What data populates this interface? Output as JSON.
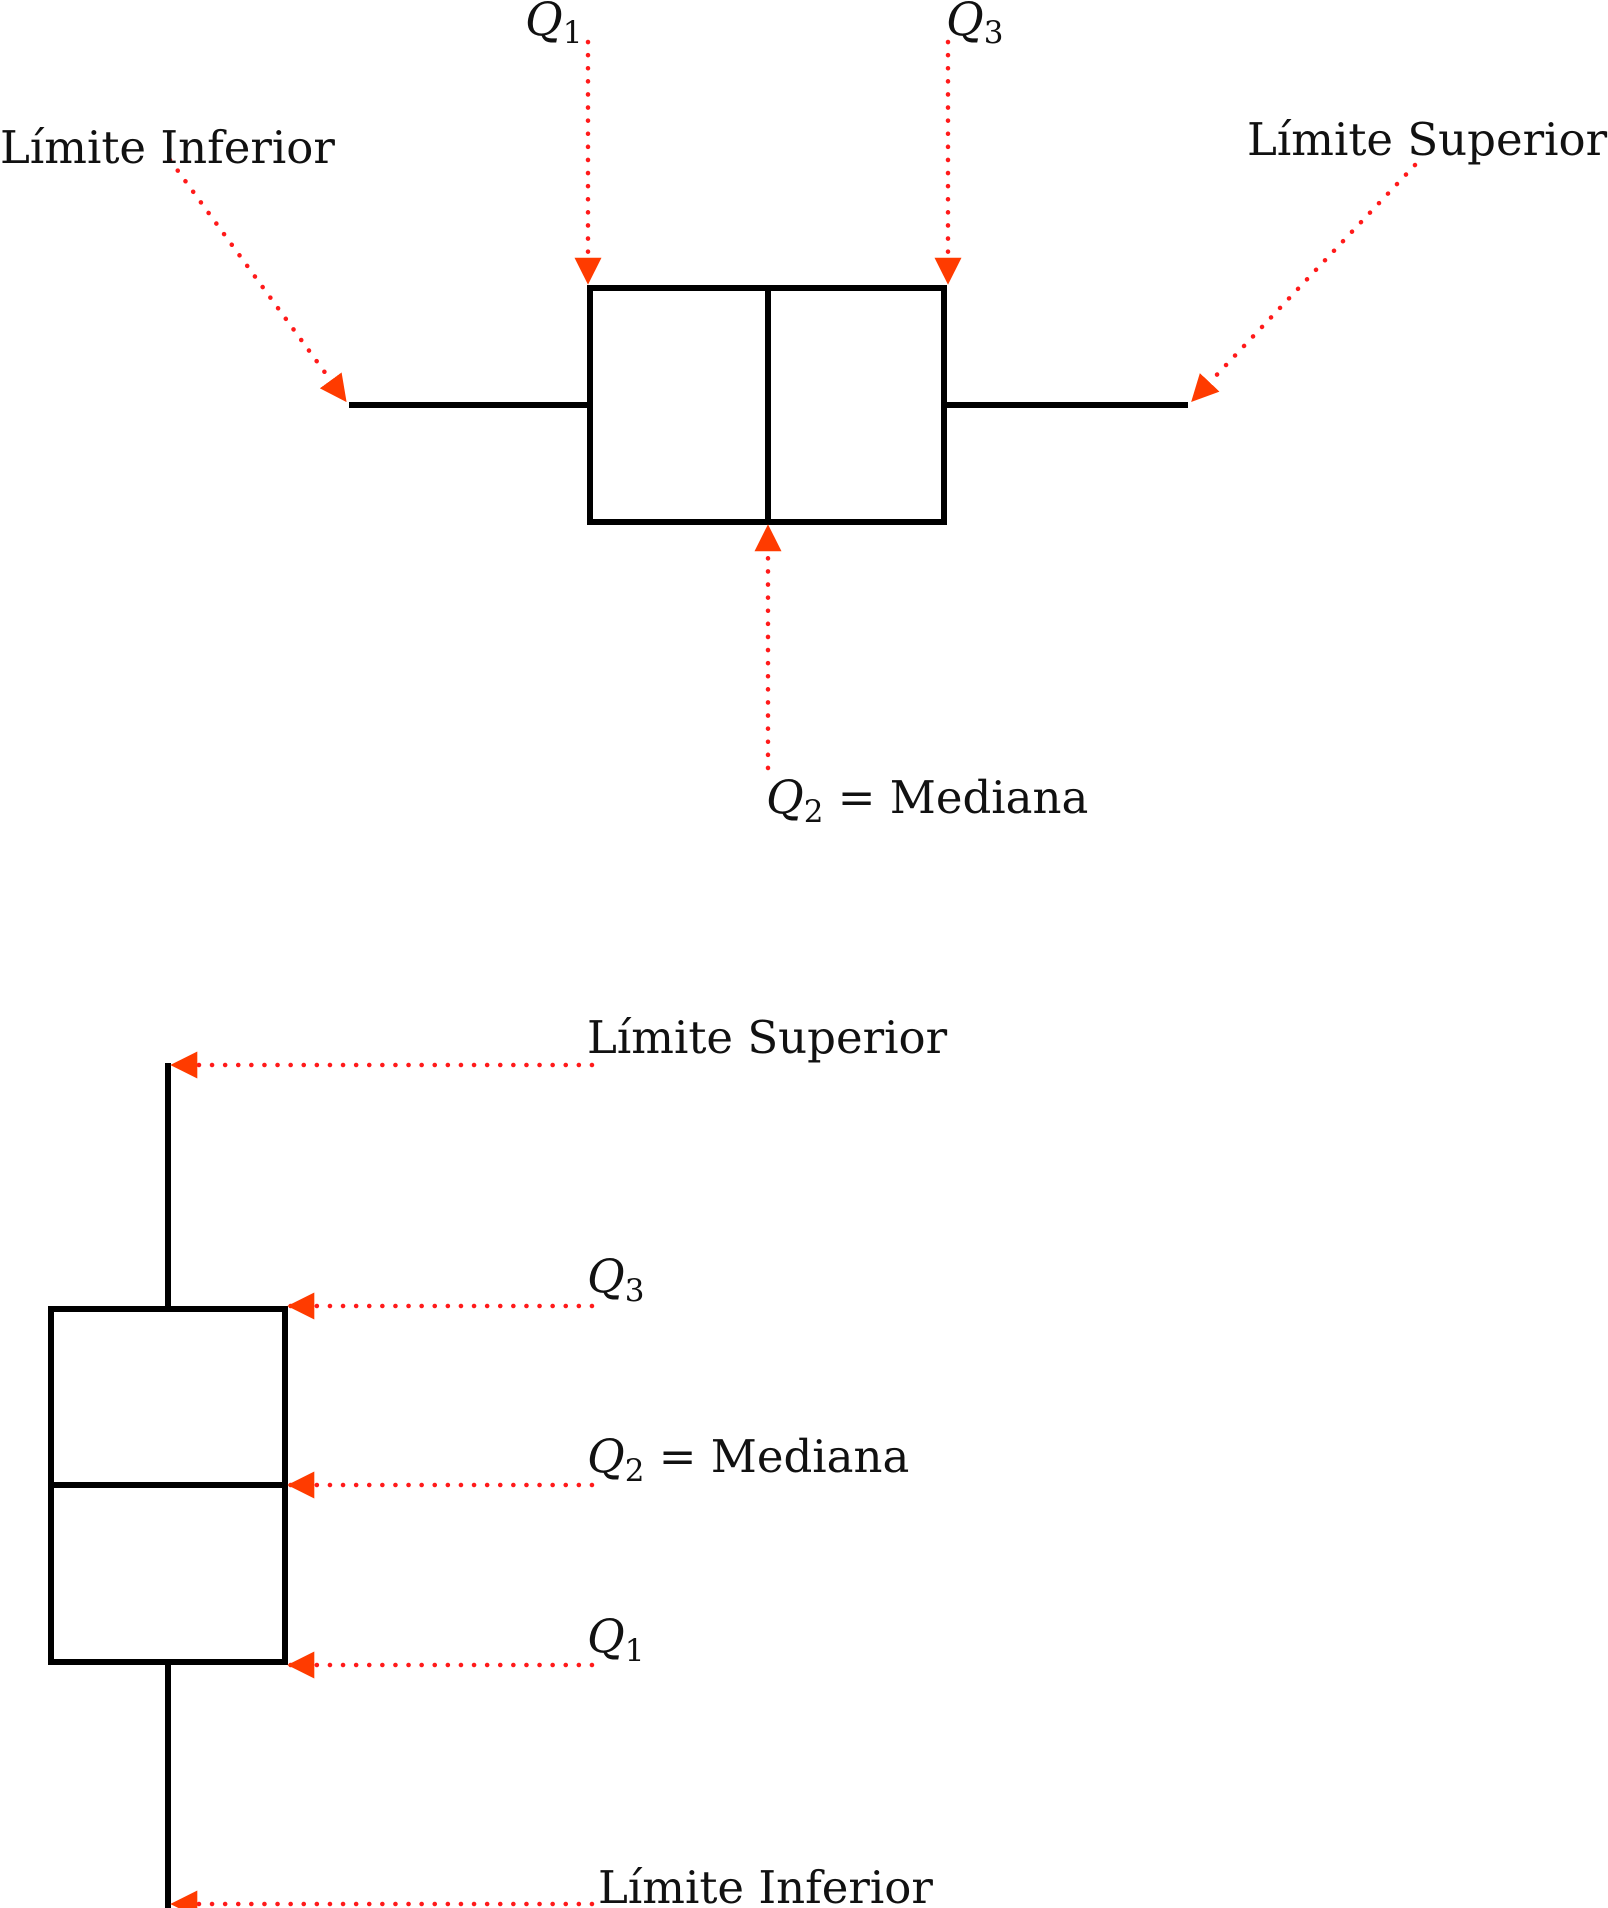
{
  "colors": {
    "outline": "#000000",
    "arrow": "#ff1a1a",
    "arrow_head": "#ff3b00"
  },
  "horizontal_boxplot": {
    "lower_limit_label": "Límite Inferior",
    "upper_limit_label": "Límite Superior",
    "q1": {
      "symbol": "Q",
      "index": "1"
    },
    "q3": {
      "symbol": "Q",
      "index": "3"
    },
    "median": {
      "symbol": "Q",
      "index": "2",
      "suffix": " = Mediana"
    }
  },
  "vertical_boxplot": {
    "upper_limit_label": "Límite Superior",
    "lower_limit_label": "Límite Inferior",
    "q3": {
      "symbol": "Q",
      "index": "3"
    },
    "median": {
      "symbol": "Q",
      "index": "2",
      "suffix": " = Mediana"
    },
    "q1": {
      "symbol": "Q",
      "index": "1"
    }
  }
}
